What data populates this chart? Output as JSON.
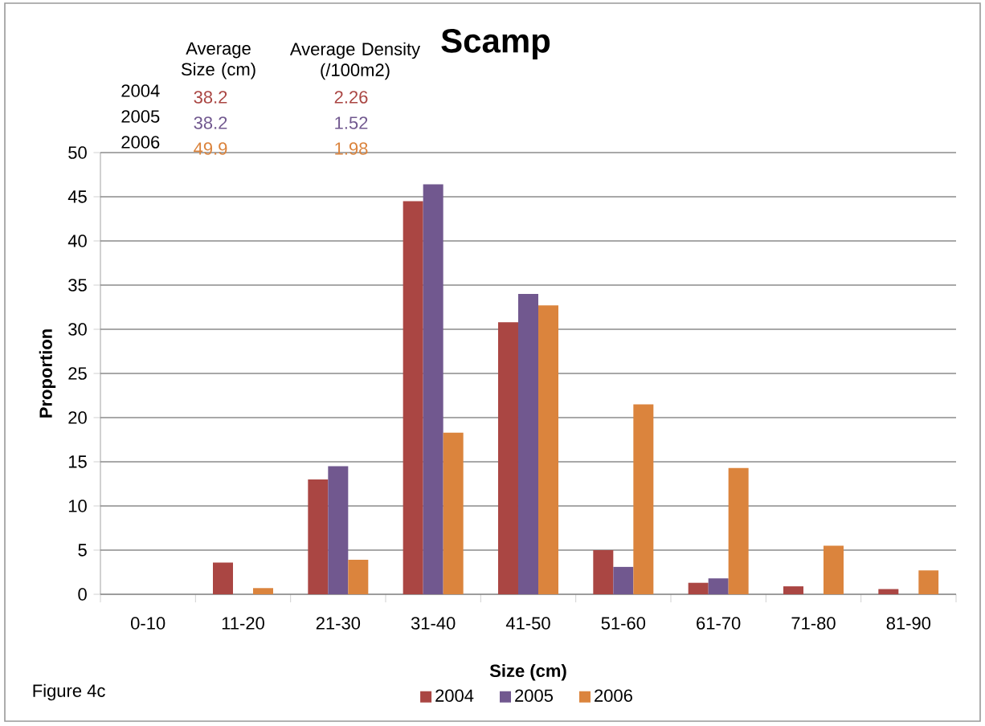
{
  "chart_data": {
    "type": "bar",
    "title": "Scamp",
    "xlabel": "Size (cm)",
    "ylabel": "Proportion",
    "categories": [
      "0-10",
      "11-20",
      "21-30",
      "31-40",
      "41-50",
      "51-60",
      "61-70",
      "71-80",
      "81-90"
    ],
    "series": [
      {
        "name": "2004",
        "color": "#aa4643",
        "values": [
          0,
          3.6,
          13.0,
          44.5,
          30.8,
          5.0,
          1.3,
          0.9,
          0.6
        ]
      },
      {
        "name": "2005",
        "color": "#71588f",
        "values": [
          0,
          0,
          14.5,
          46.4,
          34.0,
          3.1,
          1.8,
          0,
          0
        ]
      },
      {
        "name": "2006",
        "color": "#db843d",
        "values": [
          0,
          0.7,
          3.9,
          18.3,
          32.7,
          21.5,
          14.3,
          5.5,
          2.7
        ]
      }
    ],
    "ylim": [
      0,
      50
    ],
    "yticks": [
      0,
      5,
      10,
      15,
      20,
      25,
      30,
      35,
      40,
      45,
      50
    ],
    "grid": "y",
    "legend": "bottom",
    "annotations": [
      "Average Size (cm)",
      "Average Density (/100m2)",
      "2004",
      "38.2",
      "2.26",
      "2005",
      "38.2",
      "1.52",
      "2006",
      "49.9",
      "1.98",
      "Figure 4c"
    ]
  }
}
